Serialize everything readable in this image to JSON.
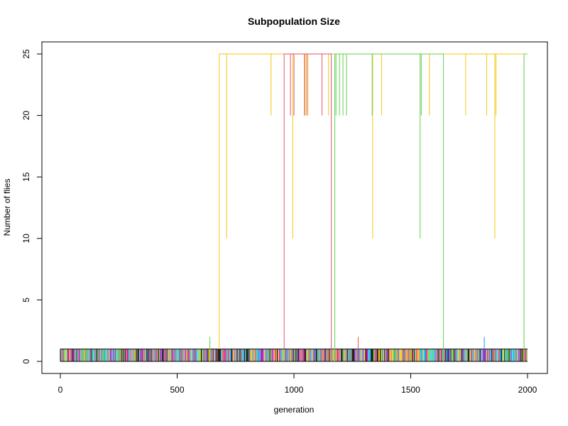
{
  "chart_data": {
    "type": "line",
    "title": "Subpopulation Size",
    "xlabel": "generation",
    "ylabel": "Number of flies",
    "xlim": [
      0,
      2000
    ],
    "ylim": [
      0,
      25
    ],
    "x_ticks": [
      0,
      500,
      1000,
      1500,
      2000
    ],
    "y_ticks": [
      0,
      5,
      10,
      15,
      20,
      25
    ],
    "x_tick_labels": [
      "0",
      "500",
      "1000",
      "1500",
      "2000"
    ],
    "y_tick_labels": [
      "0",
      "5",
      "10",
      "15",
      "20",
      "25"
    ],
    "grid": false,
    "legend": "none",
    "noise_band": {
      "x_range": [
        0,
        2000
      ],
      "level": 1,
      "colors": [
        "#000000",
        "#DF536B",
        "#61D04F",
        "#2297E6",
        "#28E2E5",
        "#CD0BBC",
        "#F5C710",
        "#9E9E9E"
      ]
    },
    "series": [
      {
        "color": "#F5C710",
        "segments": [
          {
            "x": [
              680,
              680,
              2000
            ],
            "y": [
              1,
              25,
              25
            ]
          }
        ],
        "dips": [
          [
            712,
            10
          ],
          [
            902,
            20
          ],
          [
            995,
            10
          ],
          [
            1048,
            20
          ],
          [
            1060,
            20
          ],
          [
            1148,
            20
          ],
          [
            1337,
            10
          ],
          [
            1375,
            20
          ],
          [
            1580,
            20
          ],
          [
            1735,
            20
          ],
          [
            1825,
            20
          ],
          [
            1860,
            10
          ],
          [
            1865,
            20
          ]
        ]
      },
      {
        "color": "#DF536B",
        "segments": [
          {
            "x": [
              958,
              958,
              1160,
              1160
            ],
            "y": [
              1,
              25,
              25,
              0
            ]
          }
        ],
        "dips": [
          [
            985,
            20
          ],
          [
            1000,
            20
          ],
          [
            1045,
            20
          ],
          [
            1055,
            20
          ],
          [
            1120,
            20
          ]
        ]
      },
      {
        "color": "#61D04F",
        "segments": [
          {
            "x": [
              1175,
              1175,
              1640,
              1640
            ],
            "y": [
              0,
              25,
              25,
              0
            ]
          },
          {
            "x": [
              1985,
              1985,
              2000
            ],
            "y": [
              0,
              25,
              25
            ]
          }
        ],
        "dips": [
          [
            1180,
            20
          ],
          [
            1195,
            20
          ],
          [
            1210,
            20
          ],
          [
            1225,
            20
          ],
          [
            1335,
            20
          ],
          [
            1540,
            10
          ],
          [
            1545,
            20
          ]
        ]
      }
    ],
    "spikes": [
      {
        "x": 640,
        "y": 2,
        "color": "#61D04F"
      },
      {
        "x": 1275,
        "y": 2,
        "color": "#DF536B"
      },
      {
        "x": 1815,
        "y": 2,
        "color": "#2297E6"
      }
    ]
  }
}
